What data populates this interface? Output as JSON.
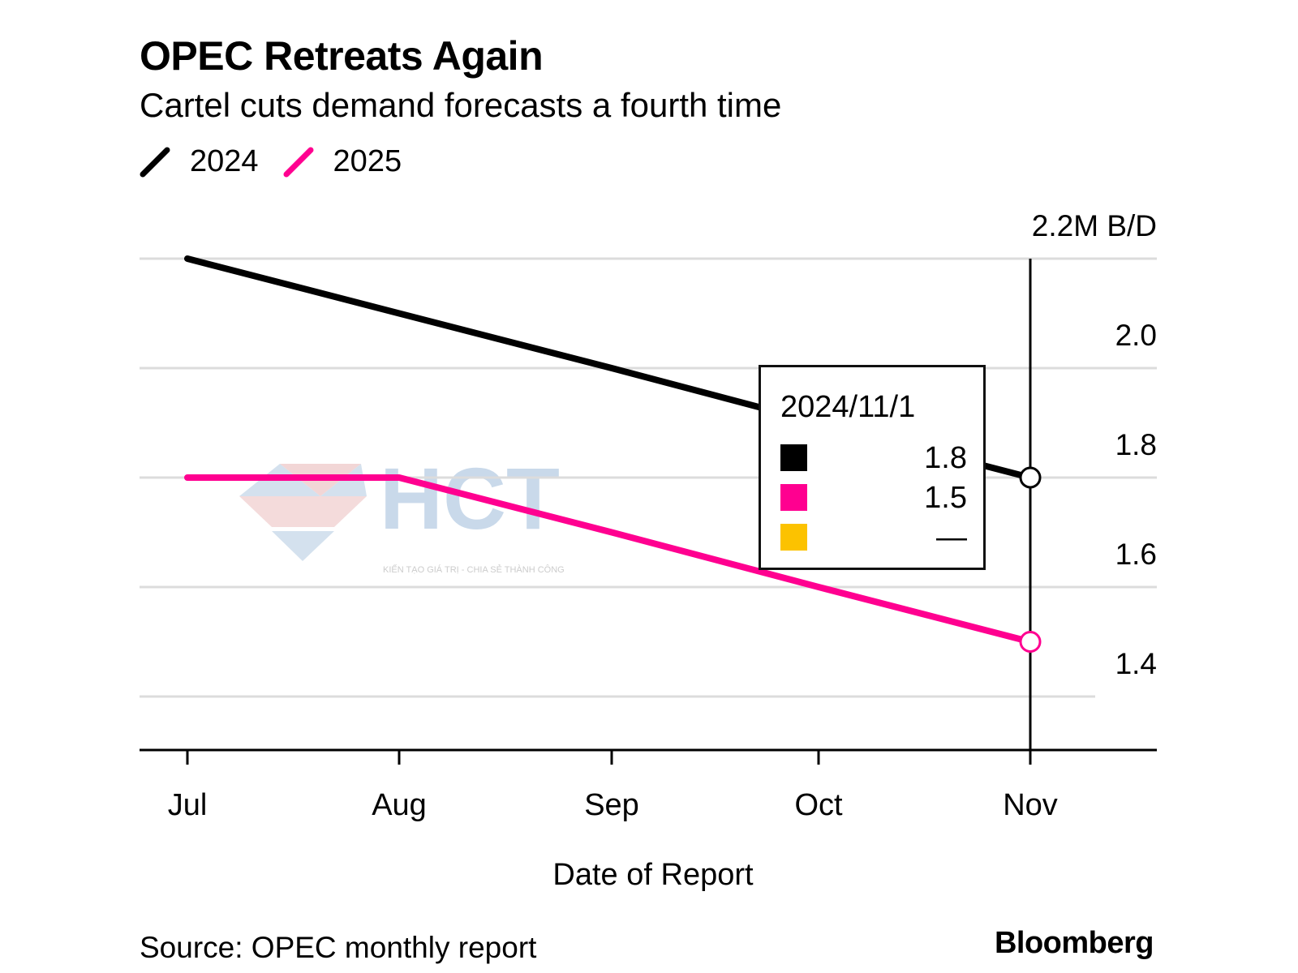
{
  "header": {
    "title": "OPEC Retreats Again",
    "subtitle": "Cartel cuts demand forecasts a fourth time"
  },
  "footer": {
    "source": "Source: OPEC monthly report",
    "brand": "Bloomberg"
  },
  "watermark": {
    "text": "HCT",
    "tagline": "KIẾN TẠO GIÁ TRỊ - CHIA SẺ THÀNH CÔNG"
  },
  "tooltip": {
    "date": "2024/11/1",
    "rows": [
      {
        "color": "#000000",
        "value": "1.8"
      },
      {
        "color": "#ff0090",
        "value": "1.5"
      },
      {
        "color": "#fcc200",
        "value": "—"
      }
    ]
  },
  "chart_data": {
    "type": "line",
    "title": "OPEC Retreats Again",
    "subtitle": "Cartel cuts demand forecasts a fourth time",
    "xlabel": "Date of Report",
    "ylabel": "",
    "unit_label": "2.2M B/D",
    "categories": [
      "Jul",
      "Aug",
      "Sep",
      "Oct",
      "Nov"
    ],
    "series": [
      {
        "name": "2024",
        "color": "#000000",
        "values": [
          2.2,
          2.1,
          2.0,
          1.9,
          1.8
        ]
      },
      {
        "name": "2025",
        "color": "#ff0090",
        "values": [
          1.8,
          1.8,
          1.7,
          1.6,
          1.5
        ]
      }
    ],
    "yticks": [
      2.2,
      2.0,
      1.8,
      1.6,
      1.4
    ],
    "ytick_labels": [
      "2.2M B/D",
      "2.0",
      "1.8",
      "1.6",
      "1.4"
    ],
    "ylim": [
      1.3,
      2.25
    ],
    "grid": true,
    "legend": "top-left",
    "highlight_category": "Nov"
  }
}
